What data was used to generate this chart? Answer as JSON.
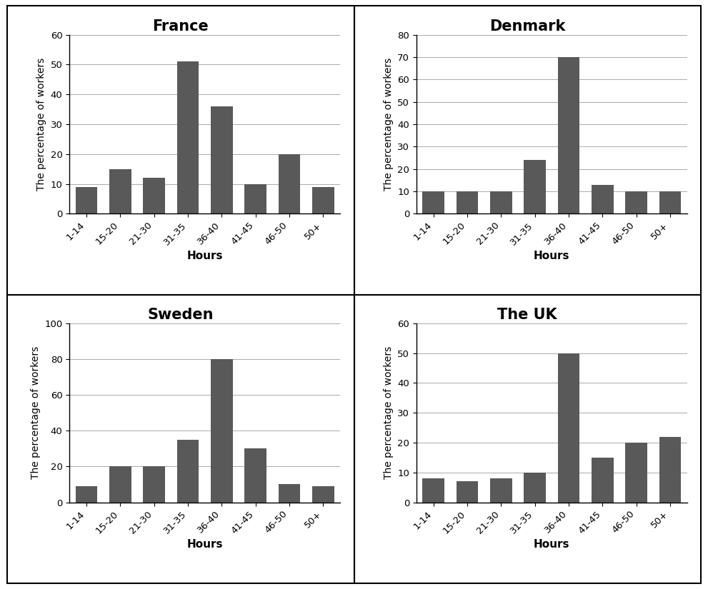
{
  "charts": [
    {
      "title": "France",
      "values": [
        9,
        15,
        12,
        51,
        36,
        10,
        20,
        9
      ],
      "ylim": [
        0,
        60
      ],
      "yticks": [
        0,
        10,
        20,
        30,
        40,
        50,
        60
      ]
    },
    {
      "title": "Denmark",
      "values": [
        10,
        10,
        10,
        24,
        70,
        13,
        10,
        10
      ],
      "ylim": [
        0,
        80
      ],
      "yticks": [
        0,
        10,
        20,
        30,
        40,
        50,
        60,
        70,
        80
      ]
    },
    {
      "title": "Sweden",
      "values": [
        9,
        20,
        20,
        35,
        80,
        30,
        10,
        9
      ],
      "ylim": [
        0,
        100
      ],
      "yticks": [
        0,
        20,
        40,
        60,
        80,
        100
      ]
    },
    {
      "title": "The UK",
      "values": [
        8,
        7,
        8,
        10,
        50,
        15,
        20,
        22
      ],
      "ylim": [
        0,
        60
      ],
      "yticks": [
        0,
        10,
        20,
        30,
        40,
        50,
        60
      ]
    }
  ],
  "categories": [
    "1-14",
    "15-20",
    "21-30",
    "31-35",
    "36-40",
    "41-45",
    "46-50",
    "50+"
  ],
  "bar_color": "#595959",
  "ylabel": "The percentage of workers",
  "xlabel": "Hours",
  "background_color": "#ffffff",
  "title_fontsize": 15,
  "label_fontsize": 11,
  "tick_fontsize": 9.5
}
